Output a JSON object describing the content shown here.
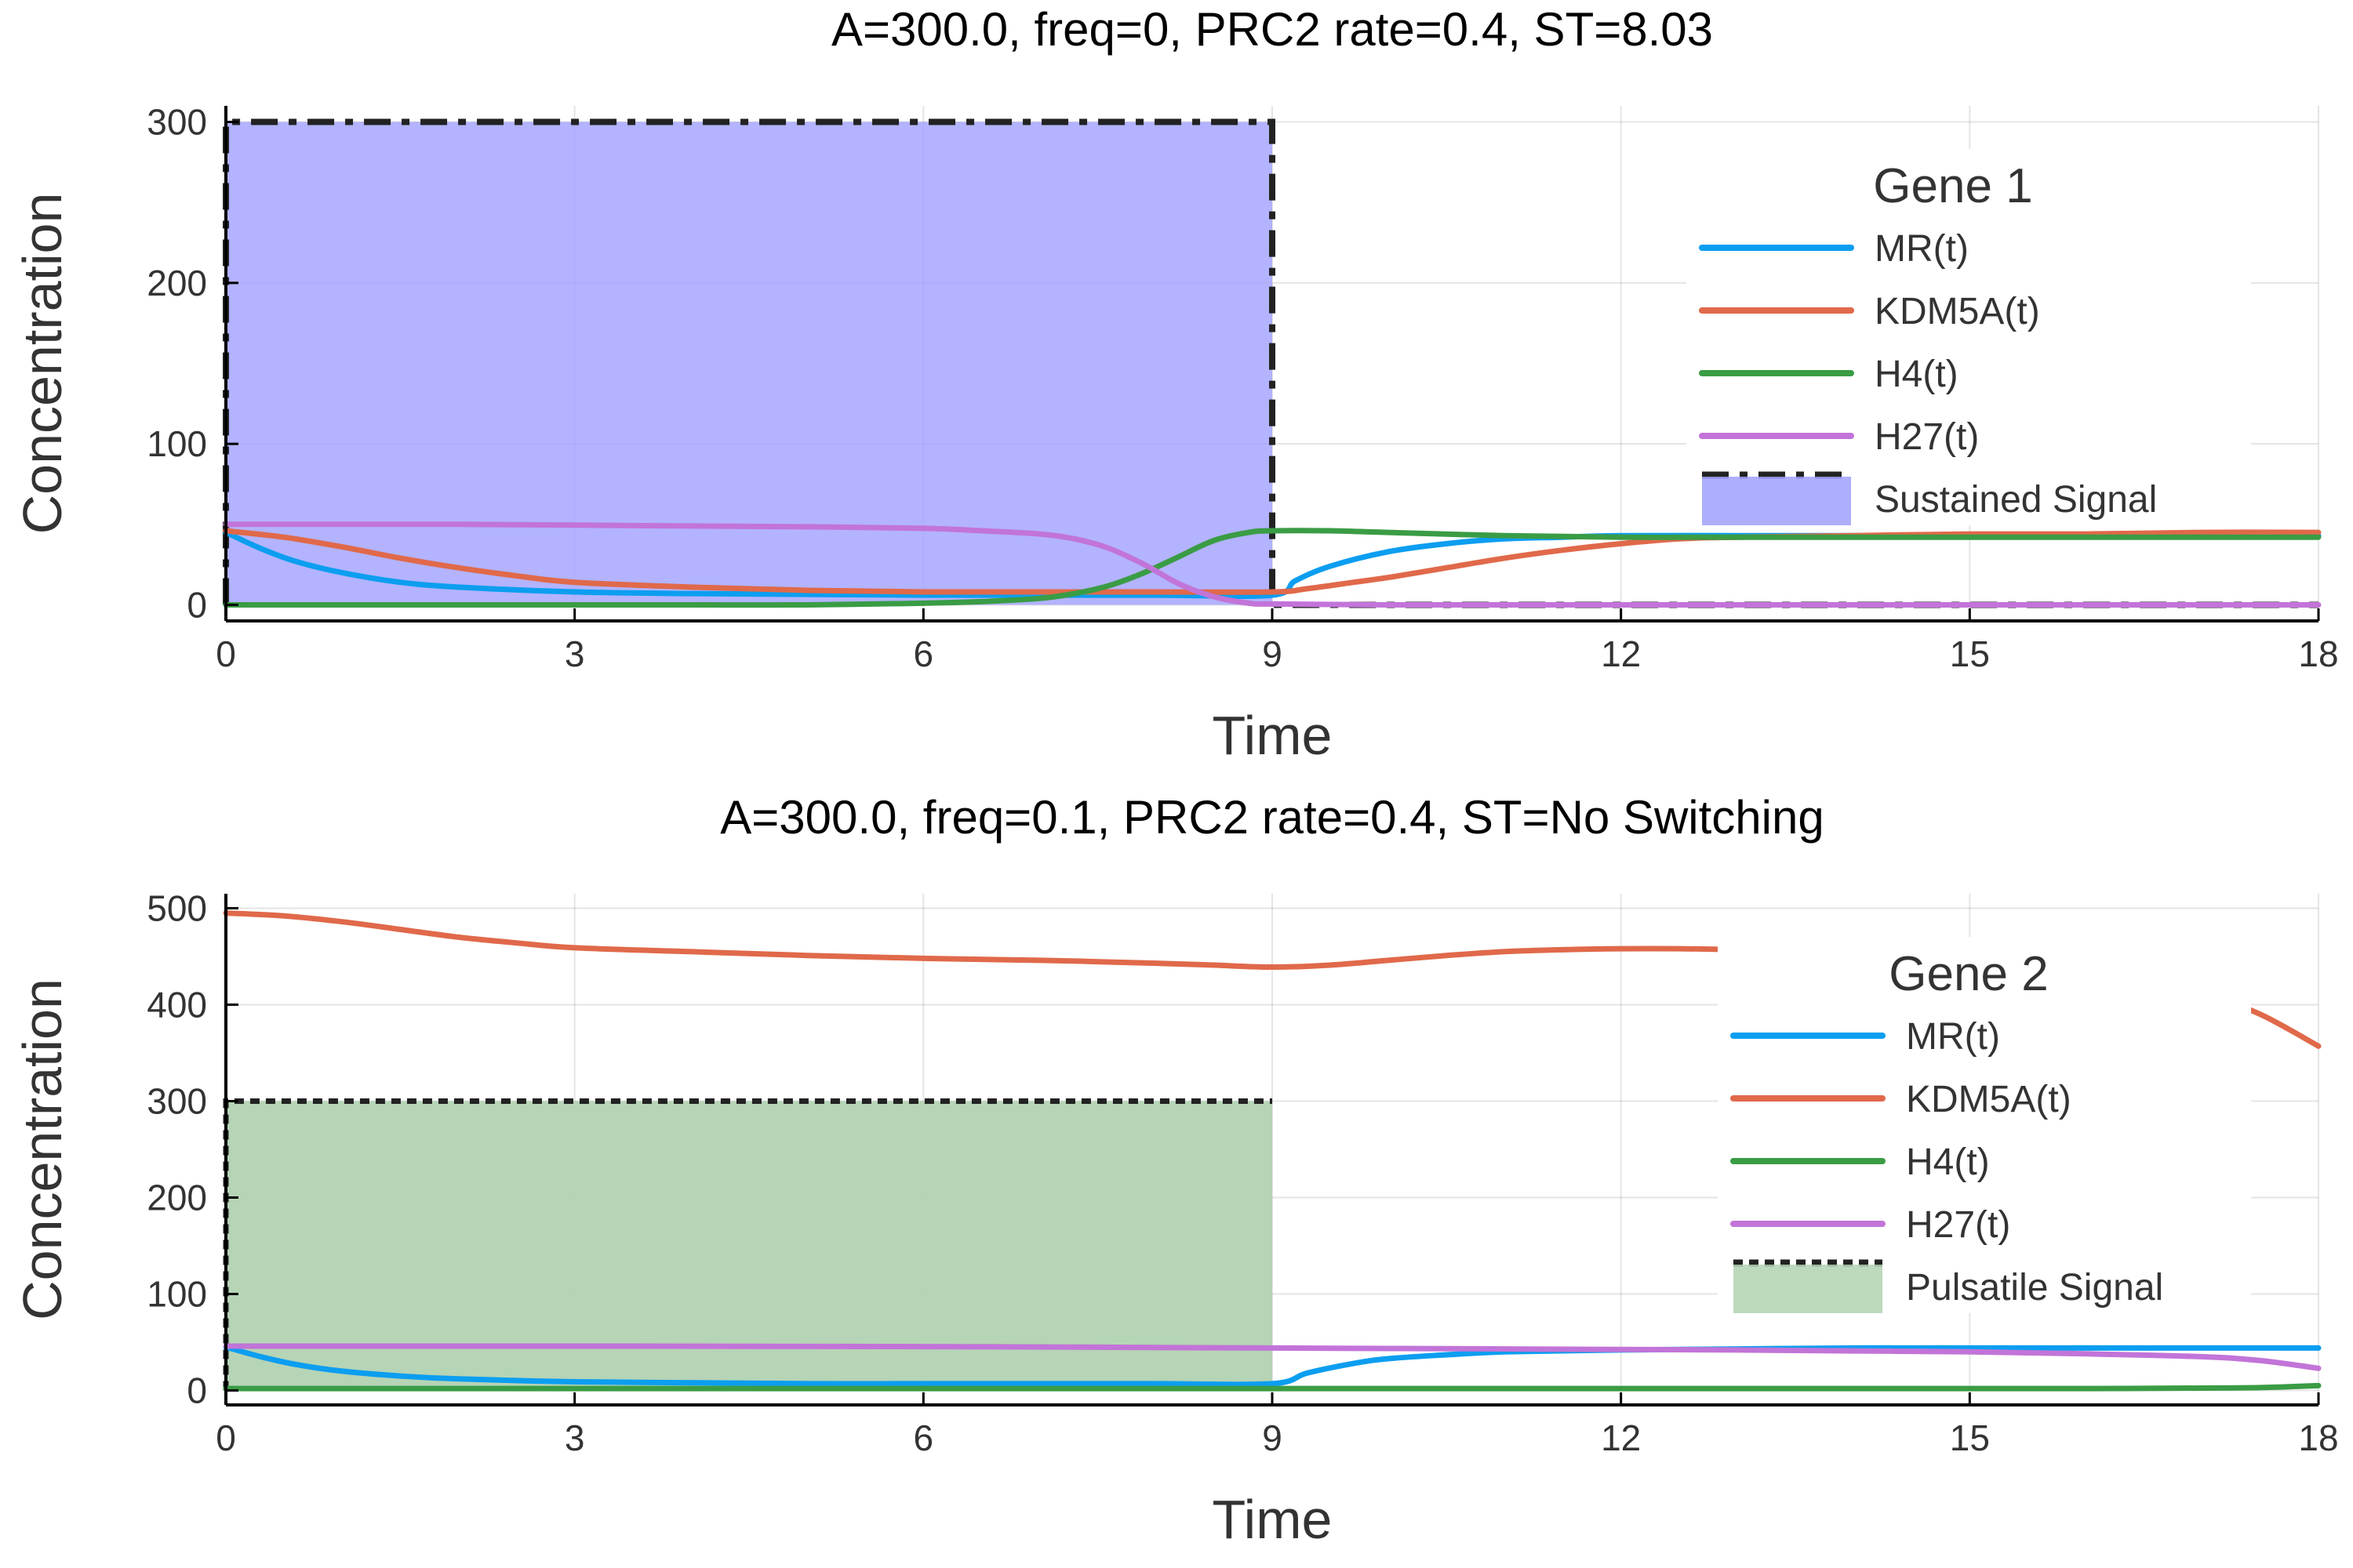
{
  "chart_data": [
    {
      "type": "line",
      "title": "A=300.0, freq=0, PRC2 rate=0.4,  ST=8.03",
      "xlabel": "Time",
      "ylabel": "Concentration",
      "xlim": [
        0,
        18
      ],
      "ylim": [
        -10,
        310
      ],
      "xticks": [
        0,
        3,
        6,
        9,
        12,
        15,
        18
      ],
      "yticks": [
        0,
        100,
        200,
        300
      ],
      "grid": true,
      "legend_title": "Gene 1",
      "legend_position": "right",
      "signal": {
        "name": "Sustained Signal",
        "amplitude": 300,
        "start": 0,
        "end": 9,
        "fill": "#a0a0ff",
        "line_style": "dashdot"
      },
      "colors": {
        "MR(t)": "#0c9ef0",
        "KDM5A(t)": "#e0694a",
        "H4(t)": "#3a9c45",
        "H27(t)": "#c274d8",
        "signal_line": "#222222"
      },
      "series": [
        {
          "name": "MR(t)",
          "x": [
            0,
            0.3,
            0.6,
            1,
            1.5,
            2,
            3,
            4,
            5,
            6,
            7,
            8,
            9,
            9.2,
            9.5,
            10,
            10.5,
            11,
            11.5,
            12,
            13,
            14,
            15,
            16,
            17,
            18
          ],
          "values": [
            45,
            35,
            27,
            20,
            14,
            11,
            8,
            7,
            6.5,
            6,
            6,
            6,
            6,
            15,
            24,
            33,
            38,
            41,
            42,
            43,
            43,
            43,
            43,
            43,
            43,
            43
          ]
        },
        {
          "name": "KDM5A(t)",
          "x": [
            0,
            0.5,
            1,
            1.5,
            2,
            2.5,
            3,
            4,
            5,
            6,
            7,
            8,
            9,
            9.3,
            9.7,
            10,
            10.5,
            11,
            11.5,
            12,
            12.5,
            13,
            14,
            15,
            16,
            17,
            18
          ],
          "values": [
            46,
            42,
            36,
            29,
            23,
            18,
            14,
            11,
            9,
            8,
            8,
            8,
            8,
            10,
            14,
            17,
            23,
            29,
            34,
            38,
            41,
            42,
            43,
            44,
            44,
            45,
            45
          ]
        },
        {
          "name": "H4(t)",
          "x": [
            0,
            1,
            2,
            3,
            4,
            5,
            6,
            6.5,
            7,
            7.3,
            7.6,
            7.9,
            8.2,
            8.5,
            8.8,
            9,
            9.5,
            10,
            11,
            12,
            13,
            14,
            15,
            16,
            17,
            18
          ],
          "values": [
            0,
            0,
            0,
            0,
            0,
            0,
            1,
            2,
            4,
            7,
            12,
            20,
            30,
            40,
            45,
            46,
            46,
            45,
            43,
            42,
            42,
            42,
            42,
            42,
            42,
            42
          ]
        },
        {
          "name": "H27(t)",
          "x": [
            0,
            1,
            2,
            3,
            4,
            5,
            6,
            6.5,
            7,
            7.3,
            7.6,
            7.9,
            8.2,
            8.5,
            8.8,
            9,
            10,
            12,
            14,
            16,
            18
          ],
          "values": [
            50,
            50,
            50,
            49.5,
            49,
            48.5,
            47.5,
            46,
            44,
            41,
            35,
            25,
            13,
            5,
            1,
            0.5,
            0,
            0,
            0,
            0,
            0
          ]
        }
      ]
    },
    {
      "type": "line",
      "title": "A=300.0, freq=0.1, PRC2 rate=0.4,  ST=No Switching",
      "xlabel": "Time",
      "ylabel": "Concentration",
      "xlim": [
        0,
        18
      ],
      "ylim": [
        -15,
        515
      ],
      "xticks": [
        0,
        3,
        6,
        9,
        12,
        15,
        18
      ],
      "yticks": [
        0,
        100,
        200,
        300,
        400,
        500
      ],
      "grid": true,
      "legend_title": "Gene 2",
      "legend_position": "right",
      "signal": {
        "name": "Pulsatile Signal",
        "amplitude": 300,
        "start": 0,
        "end": 9,
        "fill": "#b2d2b2",
        "line_style": "dotted"
      },
      "colors": {
        "MR(t)": "#0c9ef0",
        "KDM5A(t)": "#e0694a",
        "H4(t)": "#3a9c45",
        "H27(t)": "#c274d8",
        "signal_line": "#222222"
      },
      "series": [
        {
          "name": "MR(t)",
          "x": [
            0,
            0.3,
            0.6,
            1,
            1.5,
            2,
            3,
            4,
            5,
            6,
            7,
            8,
            9,
            9.3,
            9.7,
            10,
            10.5,
            11,
            12,
            13,
            14,
            15,
            16,
            17,
            18
          ],
          "values": [
            45,
            35,
            27,
            20,
            15,
            12,
            9,
            8,
            7,
            7,
            7,
            7,
            7,
            18,
            28,
            33,
            37,
            40,
            42,
            43,
            44,
            44,
            44,
            44,
            44
          ]
        },
        {
          "name": "KDM5A(t)",
          "x": [
            0,
            0.5,
            1,
            1.5,
            2,
            2.5,
            3,
            4,
            5,
            6,
            7,
            8,
            8.5,
            9,
            9.5,
            10,
            10.5,
            11,
            11.5,
            12,
            12.5,
            13,
            14,
            15,
            16,
            16.5,
            17,
            17.5,
            18
          ],
          "values": [
            495,
            492,
            486,
            478,
            470,
            464,
            459,
            455,
            451,
            448,
            446,
            443,
            441,
            439,
            441,
            446,
            451,
            455,
            457,
            458,
            458,
            457,
            454,
            448,
            437,
            427,
            412,
            390,
            357
          ]
        },
        {
          "name": "H4(t)",
          "x": [
            0,
            3,
            6,
            9,
            12,
            15,
            16,
            17,
            17.5,
            18
          ],
          "values": [
            2,
            2,
            2,
            2,
            2,
            2,
            2,
            2.5,
            3,
            5
          ]
        },
        {
          "name": "H27(t)",
          "x": [
            0,
            3,
            6,
            9,
            10,
            11,
            12,
            13,
            14,
            15,
            16,
            17,
            17.5,
            18
          ],
          "values": [
            46,
            46,
            45.5,
            44,
            43.5,
            43,
            42.5,
            42,
            41,
            40,
            38,
            35,
            31,
            23
          ]
        }
      ]
    }
  ]
}
